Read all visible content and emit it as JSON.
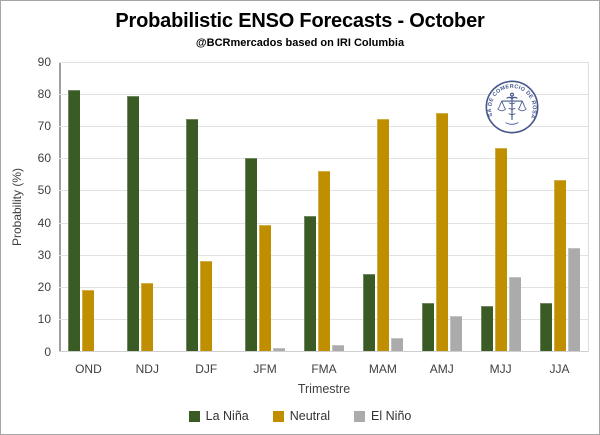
{
  "header": {
    "title": "Probabilistic ENSO Forecasts - October",
    "subtitle": "@BCRmercados based on IRI Columbia"
  },
  "watermark": {
    "text": "BOLSA DE COMERCIO DE ROSARIO"
  },
  "chart_data": {
    "type": "bar",
    "categories": [
      "OND",
      "NDJ",
      "DJF",
      "JFM",
      "FMA",
      "MAM",
      "AMJ",
      "MJJ",
      "JJA"
    ],
    "series": [
      {
        "name": "La Niña",
        "color": "#3a5b23",
        "values": [
          81,
          79,
          72,
          60,
          42,
          24,
          15,
          14,
          15
        ]
      },
      {
        "name": "Neutral",
        "color": "#bf8f00",
        "values": [
          19,
          21,
          28,
          39,
          56,
          72,
          74,
          63,
          53
        ]
      },
      {
        "name": "El Niño",
        "color": "#ababab",
        "values": [
          0,
          0,
          0,
          1,
          2,
          4,
          11,
          23,
          32
        ]
      }
    ],
    "title": "Probabilistic ENSO Forecasts - October",
    "xlabel": "Trimestre",
    "ylabel": "Probability (%)",
    "ylim": [
      0,
      90
    ],
    "ytick_step": 10,
    "grid": true,
    "legend_position": "bottom"
  },
  "colors": {
    "gridline": "#e2e2e2",
    "axis_text": "#404040",
    "logo_navy": "#46588c"
  }
}
